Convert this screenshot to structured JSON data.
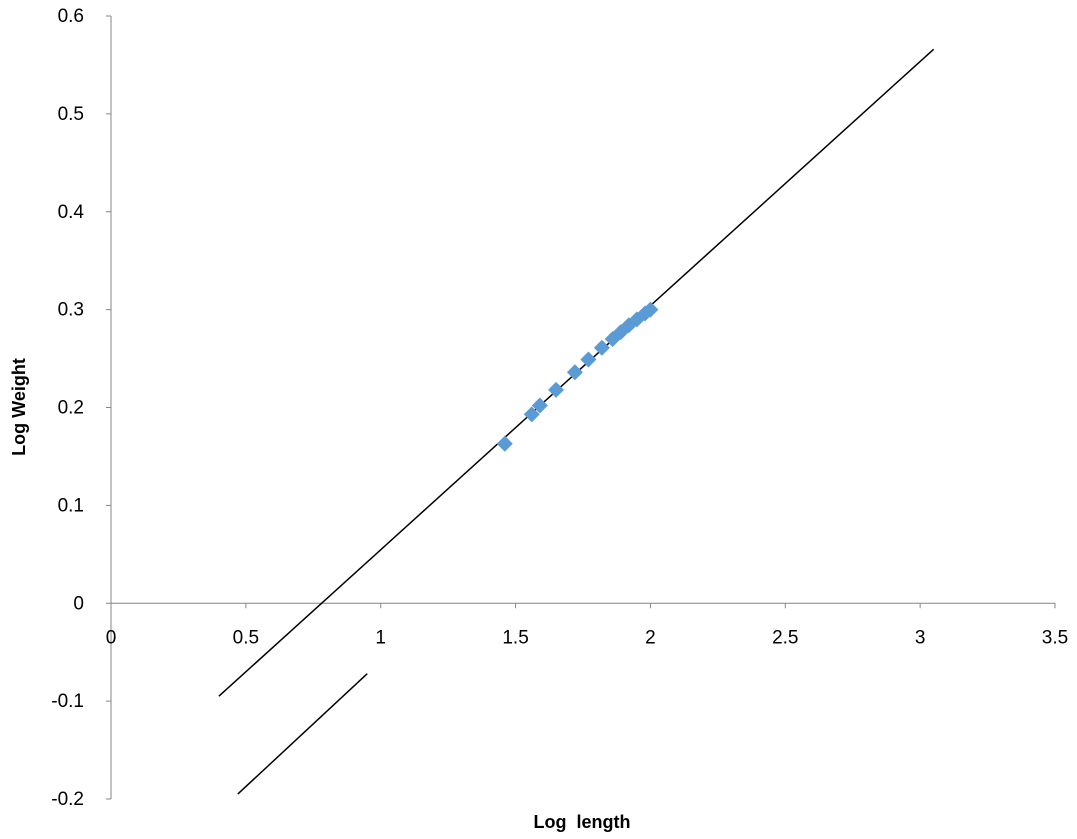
{
  "chart_data": {
    "type": "scatter",
    "xlabel": "Log  length",
    "ylabel": "Log Weight",
    "xlim": [
      0,
      3.5
    ],
    "ylim": [
      -0.2,
      0.6
    ],
    "x_ticks": [
      "0",
      "0.5",
      "1",
      "1.5",
      "2",
      "2.5",
      "3",
      "3.5"
    ],
    "y_ticks": [
      "-0.2",
      "-0.1",
      "0",
      "0.1",
      "0.2",
      "0.3",
      "0.4",
      "0.5",
      "0.6"
    ],
    "grid": false,
    "legend": "none",
    "marker_color": "#5B9BD5",
    "points": [
      {
        "x": 1.46,
        "y": 0.163
      },
      {
        "x": 1.56,
        "y": 0.193
      },
      {
        "x": 1.59,
        "y": 0.202
      },
      {
        "x": 1.65,
        "y": 0.218
      },
      {
        "x": 1.72,
        "y": 0.236
      },
      {
        "x": 1.77,
        "y": 0.249
      },
      {
        "x": 1.82,
        "y": 0.261
      },
      {
        "x": 1.86,
        "y": 0.27
      },
      {
        "x": 1.89,
        "y": 0.277
      },
      {
        "x": 1.92,
        "y": 0.284
      },
      {
        "x": 1.95,
        "y": 0.29
      },
      {
        "x": 1.98,
        "y": 0.296
      },
      {
        "x": 2.0,
        "y": 0.3
      }
    ],
    "lines": [
      {
        "name": "",
        "color": "#000000",
        "x": [
          0.4,
          3.05
        ],
        "y": [
          -0.095,
          0.566
        ]
      },
      {
        "name": "",
        "color": "#000000",
        "x": [
          0.47,
          0.95
        ],
        "y": [
          -0.195,
          -0.072
        ]
      }
    ]
  }
}
